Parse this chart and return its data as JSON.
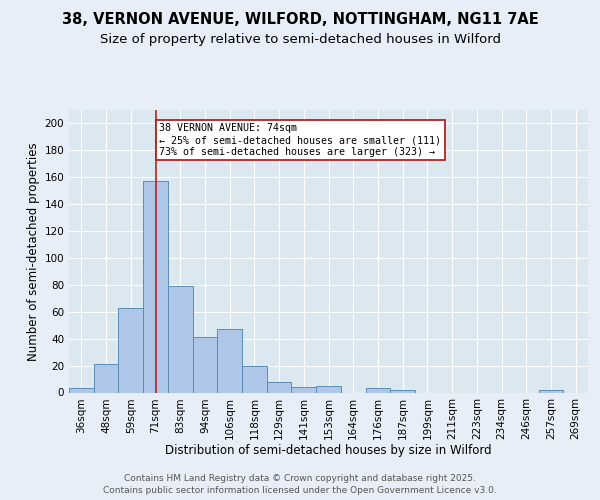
{
  "title_line1": "38, VERNON AVENUE, WILFORD, NOTTINGHAM, NG11 7AE",
  "title_line2": "Size of property relative to semi-detached houses in Wilford",
  "xlabel": "Distribution of semi-detached houses by size in Wilford",
  "ylabel": "Number of semi-detached properties",
  "bar_labels": [
    "36sqm",
    "48sqm",
    "59sqm",
    "71sqm",
    "83sqm",
    "94sqm",
    "106sqm",
    "118sqm",
    "129sqm",
    "141sqm",
    "153sqm",
    "164sqm",
    "176sqm",
    "187sqm",
    "199sqm",
    "211sqm",
    "223sqm",
    "234sqm",
    "246sqm",
    "257sqm",
    "269sqm"
  ],
  "bar_values": [
    3,
    21,
    63,
    157,
    79,
    41,
    47,
    20,
    8,
    4,
    5,
    0,
    3,
    2,
    0,
    0,
    0,
    0,
    0,
    2,
    0
  ],
  "bar_color": "#aec6e8",
  "bar_edge_color": "#5b8db8",
  "annotation_text": "38 VERNON AVENUE: 74sqm\n← 25% of semi-detached houses are smaller (111)\n73% of semi-detached houses are larger (323) →",
  "vline_x_bar_index": 3,
  "vline_color": "#b22222",
  "ylim": [
    0,
    210
  ],
  "yticks": [
    0,
    20,
    40,
    60,
    80,
    100,
    120,
    140,
    160,
    180,
    200
  ],
  "bg_color": "#e8eef8",
  "plot_bg_color": "#dce8f0",
  "footer_text": "Contains HM Land Registry data © Crown copyright and database right 2025.\nContains public sector information licensed under the Open Government Licence v3.0.",
  "annotation_box_facecolor": "#ffffff",
  "annotation_box_edgecolor": "#b22222",
  "title_fontsize": 10.5,
  "subtitle_fontsize": 9.5,
  "axis_label_fontsize": 8.5,
  "tick_fontsize": 7.5,
  "footer_fontsize": 6.5
}
